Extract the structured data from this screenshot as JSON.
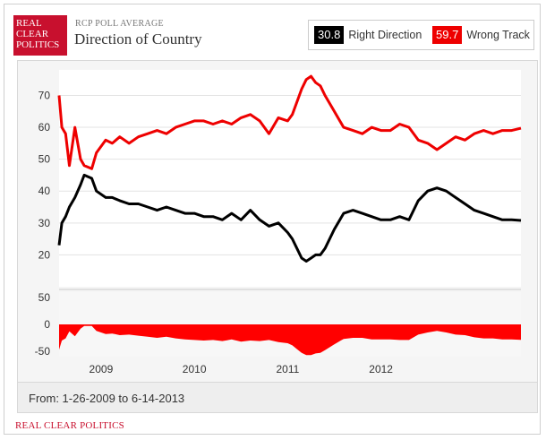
{
  "brand": {
    "logo_lines": [
      "REAL",
      "CLEAR",
      "POLITICS"
    ],
    "kicker": "RCP POLL AVERAGE",
    "title": "Direction of Country",
    "footer": "REAL CLEAR POLITICS"
  },
  "legend": [
    {
      "value": "30.8",
      "label": "Right Direction",
      "color": "#000000"
    },
    {
      "value": "59.7",
      "label": "Wrong Track",
      "color": "#ee0000"
    }
  ],
  "date_range": "From: 1-26-2009 to 6-14-2013",
  "colors": {
    "right": "#000000",
    "wrong": "#ee0000",
    "spread": "#ff0000",
    "accent": "#c8102e"
  },
  "chart_data": [
    {
      "type": "line",
      "ylim": [
        10,
        78
      ],
      "yticks": [
        20,
        30,
        40,
        50,
        60,
        70
      ],
      "xlim": [
        2008.55,
        2013.5
      ],
      "xticks": [
        {
          "label": "2009",
          "x": 2009
        },
        {
          "label": "2010",
          "x": 2010
        },
        {
          "label": "2011",
          "x": 2011
        },
        {
          "label": "2012",
          "x": 2012
        }
      ],
      "grid": true,
      "series": [
        {
          "name": "Wrong Track",
          "x": [
            2008.55,
            2008.58,
            2008.62,
            2008.66,
            2008.72,
            2008.78,
            2008.82,
            2008.9,
            2008.95,
            2009.05,
            2009.12,
            2009.2,
            2009.3,
            2009.4,
            2009.5,
            2009.6,
            2009.7,
            2009.8,
            2009.9,
            2010.0,
            2010.1,
            2010.2,
            2010.3,
            2010.4,
            2010.5,
            2010.6,
            2010.7,
            2010.8,
            2010.9,
            2011.0,
            2011.05,
            2011.1,
            2011.15,
            2011.2,
            2011.25,
            2011.3,
            2011.35,
            2011.4,
            2011.5,
            2011.6,
            2011.7,
            2011.8,
            2011.9,
            2012.0,
            2012.1,
            2012.2,
            2012.3,
            2012.4,
            2012.5,
            2012.6,
            2012.7,
            2012.8,
            2012.9,
            2013.0,
            2013.1,
            2013.2,
            2013.3,
            2013.4,
            2013.5
          ],
          "values": [
            70,
            60,
            58,
            48,
            60,
            50,
            48,
            47,
            52,
            56,
            55,
            57,
            55,
            57,
            58,
            59,
            58,
            60,
            61,
            62,
            62,
            61,
            62,
            61,
            63,
            64,
            62,
            58,
            63,
            62,
            64,
            68,
            72,
            75,
            76,
            74,
            73,
            70,
            65,
            60,
            59,
            58,
            60,
            59,
            59,
            61,
            60,
            56,
            55,
            53,
            55,
            57,
            56,
            58,
            59,
            58,
            59,
            59,
            59.7
          ]
        },
        {
          "name": "Right Direction",
          "x": [
            2008.55,
            2008.58,
            2008.62,
            2008.66,
            2008.72,
            2008.78,
            2008.82,
            2008.9,
            2008.95,
            2009.05,
            2009.12,
            2009.2,
            2009.3,
            2009.4,
            2009.5,
            2009.6,
            2009.7,
            2009.8,
            2009.9,
            2010.0,
            2010.1,
            2010.2,
            2010.3,
            2010.4,
            2010.5,
            2010.6,
            2010.7,
            2010.8,
            2010.9,
            2011.0,
            2011.05,
            2011.1,
            2011.15,
            2011.2,
            2011.25,
            2011.3,
            2011.35,
            2011.4,
            2011.5,
            2011.6,
            2011.7,
            2011.8,
            2011.9,
            2012.0,
            2012.1,
            2012.2,
            2012.3,
            2012.4,
            2012.5,
            2012.6,
            2012.7,
            2012.8,
            2012.9,
            2013.0,
            2013.1,
            2013.2,
            2013.3,
            2013.4,
            2013.5
          ],
          "values": [
            23,
            30,
            32,
            35,
            38,
            42,
            45,
            44,
            40,
            38,
            38,
            37,
            36,
            36,
            35,
            34,
            35,
            34,
            33,
            33,
            32,
            32,
            31,
            33,
            31,
            34,
            31,
            29,
            30,
            27,
            25,
            22,
            19,
            18,
            19,
            20,
            20,
            22,
            28,
            33,
            34,
            33,
            32,
            31,
            31,
            32,
            31,
            37,
            40,
            41,
            40,
            38,
            36,
            34,
            33,
            32,
            31,
            31,
            30.8
          ]
        }
      ]
    },
    {
      "type": "area",
      "ylim": [
        -60,
        60
      ],
      "yticks": [
        50,
        0,
        -50
      ],
      "series": [
        {
          "name": "Spread",
          "x": [
            2008.55,
            2008.58,
            2008.62,
            2008.66,
            2008.72,
            2008.78,
            2008.82,
            2008.9,
            2008.95,
            2009.05,
            2009.12,
            2009.2,
            2009.3,
            2009.4,
            2009.5,
            2009.6,
            2009.7,
            2009.8,
            2009.9,
            2010.0,
            2010.1,
            2010.2,
            2010.3,
            2010.4,
            2010.5,
            2010.6,
            2010.7,
            2010.8,
            2010.9,
            2011.0,
            2011.05,
            2011.1,
            2011.15,
            2011.2,
            2011.25,
            2011.3,
            2011.35,
            2011.4,
            2011.5,
            2011.6,
            2011.7,
            2011.8,
            2011.9,
            2012.0,
            2012.1,
            2012.2,
            2012.3,
            2012.4,
            2012.5,
            2012.6,
            2012.7,
            2012.8,
            2012.9,
            2013.0,
            2013.1,
            2013.2,
            2013.3,
            2013.4,
            2013.5
          ],
          "values": [
            -47,
            -30,
            -26,
            -13,
            -22,
            -8,
            -3,
            -3,
            -12,
            -18,
            -17,
            -20,
            -19,
            -21,
            -23,
            -25,
            -23,
            -26,
            -28,
            -29,
            -30,
            -29,
            -31,
            -28,
            -32,
            -30,
            -31,
            -29,
            -33,
            -35,
            -39,
            -46,
            -53,
            -57,
            -57,
            -54,
            -53,
            -48,
            -37,
            -27,
            -25,
            -25,
            -28,
            -28,
            -28,
            -29,
            -29,
            -19,
            -15,
            -12,
            -15,
            -19,
            -20,
            -24,
            -26,
            -26,
            -28,
            -28,
            -28.9
          ]
        }
      ]
    }
  ]
}
